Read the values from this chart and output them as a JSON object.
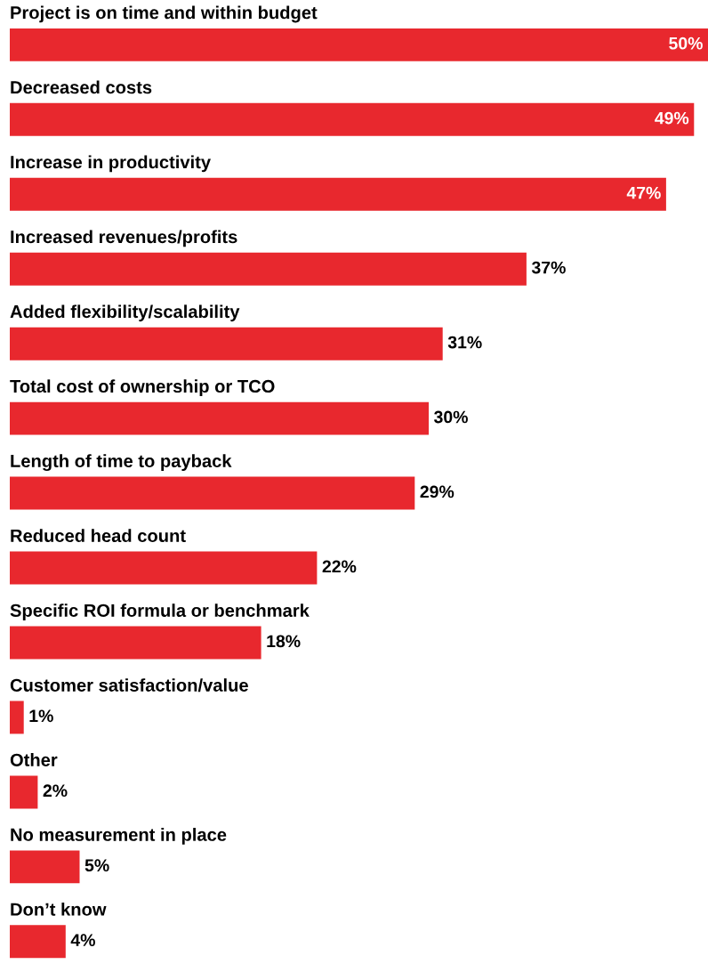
{
  "chart_data": {
    "type": "bar",
    "orientation": "horizontal",
    "categories": [
      "Project is on time and within budget",
      "Decreased costs",
      "Increase in productivity",
      "Increased revenues/profits",
      "Added flexibility/scalability",
      "Total cost of ownership or TCO",
      "Length of time to payback",
      "Reduced head count",
      "Specific ROI formula or benchmark",
      "Customer satisfaction/value",
      "Other",
      "No measurement in place",
      "Don’t know"
    ],
    "values": [
      50,
      49,
      47,
      37,
      31,
      30,
      29,
      22,
      18,
      1,
      2,
      5,
      4
    ],
    "value_labels": [
      "50%",
      "49%",
      "47%",
      "37%",
      "31%",
      "30%",
      "29%",
      "22%",
      "18%",
      "1%",
      "2%",
      "5%",
      "4%"
    ],
    "color": "#e8282e",
    "legend": false
  }
}
